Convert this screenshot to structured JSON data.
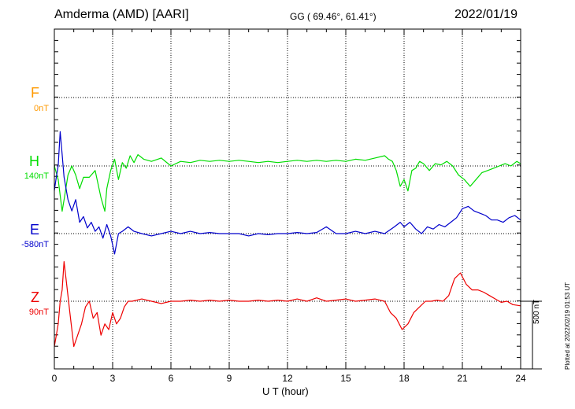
{
  "header": {
    "station": "Amderma (AMD)  [AARI]",
    "coords": "GG ( 69.46°,  61.41°)",
    "date": "2022/01/19"
  },
  "footer_note": "Plotted at 2022/02/19 01:53 UT",
  "colors": {
    "F": "#ff9900",
    "H": "#00dd00",
    "E": "#0000cc",
    "Z": "#ee0000",
    "grid": "#000000"
  },
  "chart_data": {
    "type": "line",
    "title": "Amderma (AMD)  [AARI]",
    "xlabel": "U T (hour)",
    "xlim": [
      0,
      24
    ],
    "xticks": [
      0,
      3,
      6,
      9,
      12,
      15,
      18,
      21,
      24
    ],
    "scale_bar": "500 nT",
    "grid": true,
    "series": [
      {
        "name": "F",
        "baseline_label": "0nT",
        "baseline_nT": 0,
        "values": []
      },
      {
        "name": "H",
        "baseline_label": "140nT",
        "baseline_nT": 140,
        "x": [
          0,
          0.2,
          0.4,
          0.5,
          0.7,
          0.9,
          1.1,
          1.3,
          1.5,
          1.8,
          2.1,
          2.4,
          2.6,
          2.7,
          2.9,
          3.1,
          3.3,
          3.5,
          3.7,
          3.9,
          4.1,
          4.3,
          4.6,
          5.0,
          5.5,
          6.0,
          6.5,
          7.0,
          7.5,
          8.0,
          8.5,
          9.0,
          9.5,
          10.0,
          10.5,
          11.0,
          11.5,
          12.0,
          12.5,
          13.0,
          13.5,
          14.0,
          14.5,
          15.0,
          15.5,
          16.0,
          16.5,
          17.0,
          17.2,
          17.4,
          17.6,
          17.8,
          18.0,
          18.2,
          18.4,
          18.6,
          18.8,
          19.0,
          19.3,
          19.6,
          19.9,
          20.2,
          20.5,
          20.8,
          21.1,
          21.4,
          21.7,
          22.0,
          22.3,
          22.6,
          22.9,
          23.2,
          23.5,
          23.8,
          24.0
        ],
        "values": [
          0,
          -120,
          -400,
          -300,
          -80,
          0,
          -80,
          -200,
          -100,
          -100,
          -40,
          -280,
          -400,
          -200,
          -40,
          60,
          -120,
          30,
          -20,
          90,
          30,
          100,
          60,
          40,
          70,
          0,
          40,
          30,
          50,
          40,
          50,
          40,
          50,
          40,
          30,
          40,
          30,
          40,
          50,
          40,
          50,
          40,
          50,
          40,
          60,
          50,
          70,
          90,
          60,
          40,
          -40,
          -180,
          -120,
          -220,
          -40,
          -20,
          40,
          20,
          -40,
          20,
          10,
          40,
          0,
          -80,
          -120,
          -180,
          -120,
          -60,
          -40,
          -20,
          0,
          20,
          0,
          40,
          20
        ]
      },
      {
        "name": "E",
        "baseline_label": "-580nT",
        "baseline_nT": -580,
        "x": [
          0,
          0.1,
          0.2,
          0.3,
          0.4,
          0.5,
          0.7,
          0.9,
          1.1,
          1.3,
          1.5,
          1.7,
          1.9,
          2.1,
          2.3,
          2.5,
          2.7,
          2.9,
          3.1,
          3.3,
          3.5,
          3.8,
          4.1,
          4.5,
          5.0,
          5.5,
          6.0,
          6.5,
          7.0,
          7.5,
          8.0,
          8.5,
          9.0,
          9.5,
          10.0,
          10.5,
          11.0,
          11.5,
          12.0,
          12.5,
          13.0,
          13.5,
          14.0,
          14.5,
          15.0,
          15.5,
          16.0,
          16.5,
          17.0,
          17.5,
          17.8,
          18.0,
          18.3,
          18.6,
          18.9,
          19.2,
          19.5,
          19.8,
          20.1,
          20.4,
          20.7,
          21.0,
          21.3,
          21.6,
          21.9,
          22.2,
          22.5,
          22.8,
          23.1,
          23.4,
          23.7,
          24.0
        ],
        "values": [
          380,
          500,
          600,
          900,
          700,
          500,
          300,
          200,
          300,
          100,
          150,
          50,
          100,
          20,
          60,
          -40,
          80,
          -20,
          -180,
          0,
          20,
          60,
          20,
          0,
          -20,
          0,
          20,
          0,
          20,
          0,
          10,
          0,
          0,
          0,
          -20,
          0,
          -10,
          0,
          0,
          10,
          0,
          10,
          60,
          0,
          0,
          20,
          0,
          20,
          0,
          60,
          100,
          60,
          100,
          40,
          0,
          60,
          40,
          80,
          60,
          100,
          140,
          220,
          240,
          200,
          180,
          160,
          120,
          120,
          100,
          140,
          160,
          120
        ]
      },
      {
        "name": "Z",
        "baseline_label": "90nT",
        "baseline_nT": 90,
        "x": [
          0,
          0.1,
          0.2,
          0.3,
          0.4,
          0.5,
          0.6,
          0.8,
          1.0,
          1.2,
          1.4,
          1.6,
          1.8,
          2.0,
          2.2,
          2.4,
          2.6,
          2.8,
          3.0,
          3.2,
          3.4,
          3.6,
          3.8,
          4.0,
          4.5,
          5.0,
          5.5,
          6.0,
          6.5,
          7.0,
          7.5,
          8.0,
          8.5,
          9.0,
          9.5,
          10.0,
          10.5,
          11.0,
          11.5,
          12.0,
          12.5,
          13.0,
          13.5,
          14.0,
          14.5,
          15.0,
          15.5,
          16.0,
          16.5,
          17.0,
          17.3,
          17.6,
          17.9,
          18.2,
          18.5,
          18.8,
          19.1,
          19.4,
          19.7,
          20.0,
          20.3,
          20.6,
          20.9,
          21.2,
          21.5,
          21.8,
          22.1,
          22.4,
          22.7,
          23.0,
          23.3,
          23.6,
          24.0
        ],
        "values": [
          -400,
          -300,
          -200,
          0,
          100,
          350,
          200,
          -100,
          -400,
          -300,
          -200,
          -50,
          0,
          -150,
          -100,
          -300,
          -200,
          -250,
          -100,
          -200,
          -150,
          -50,
          0,
          0,
          20,
          0,
          -20,
          0,
          0,
          10,
          0,
          10,
          0,
          10,
          0,
          0,
          10,
          0,
          10,
          0,
          20,
          0,
          30,
          0,
          10,
          20,
          0,
          10,
          20,
          0,
          -100,
          -150,
          -250,
          -200,
          -100,
          -50,
          0,
          0,
          10,
          0,
          50,
          200,
          250,
          150,
          100,
          100,
          80,
          50,
          20,
          -10,
          0,
          -30,
          -40
        ]
      }
    ]
  }
}
